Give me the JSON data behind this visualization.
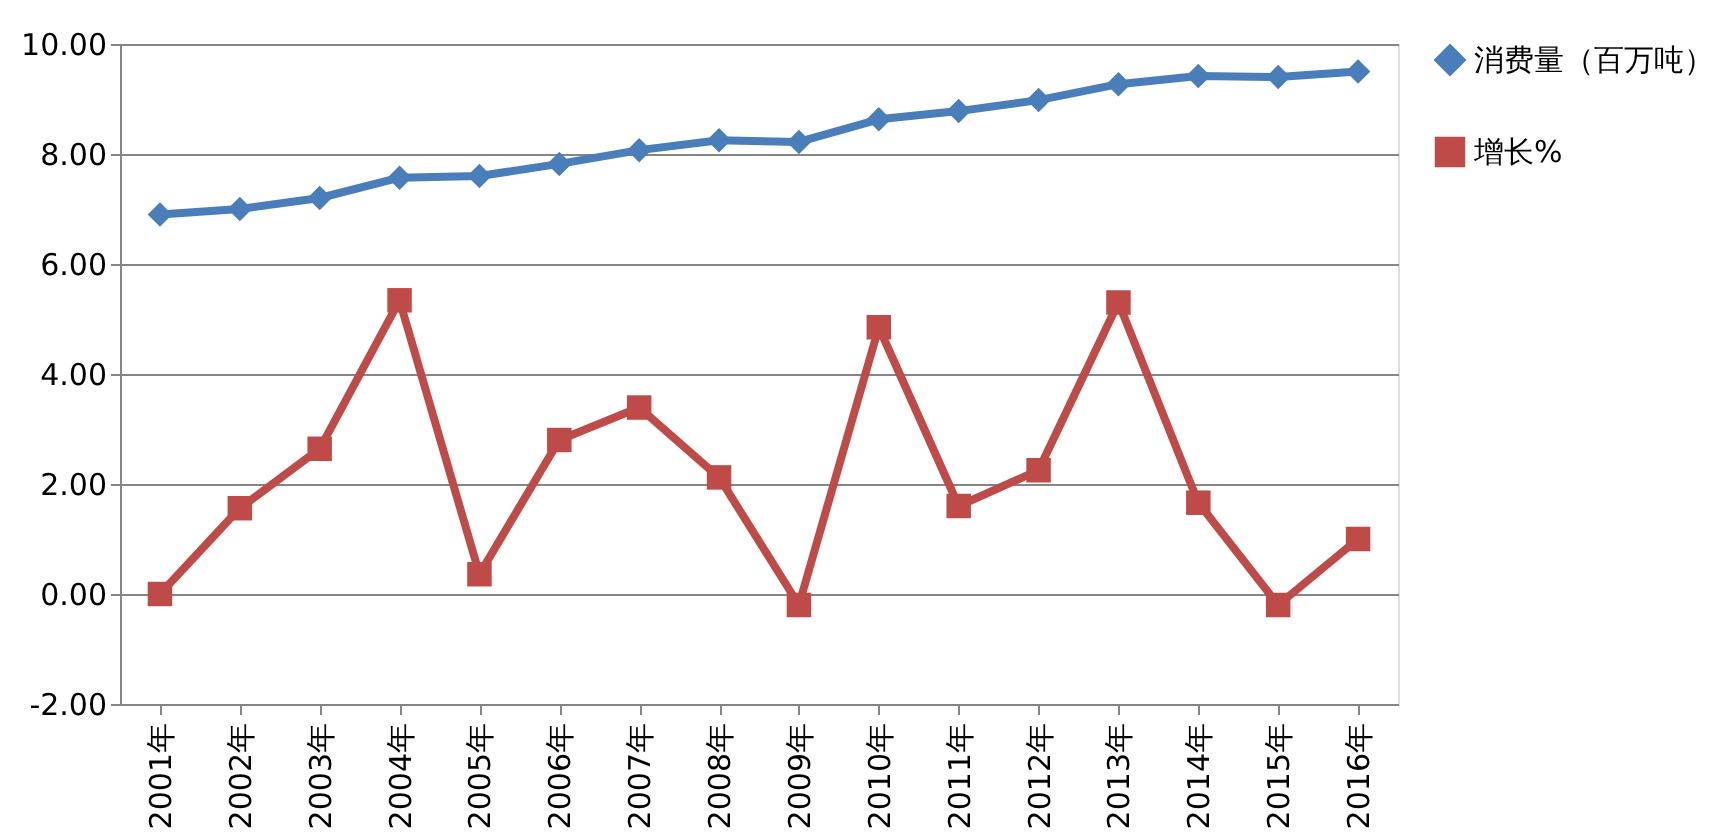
{
  "chart_data": {
    "type": "line",
    "categories": [
      "2001年",
      "2002年",
      "2003年",
      "2004年",
      "2005年",
      "2006年",
      "2007年",
      "2008年",
      "2009年",
      "2010年",
      "2011年",
      "2012年",
      "2013年",
      "2014年",
      "2015年",
      "2016年"
    ],
    "series": [
      {
        "name": "消费量（百万吨）",
        "color": "#4a7ebb",
        "marker": "diamond",
        "values": [
          6.9,
          7.0,
          7.2,
          7.57,
          7.6,
          7.82,
          8.07,
          8.25,
          8.22,
          8.63,
          8.78,
          8.98,
          9.27,
          9.42,
          9.4,
          9.5
        ]
      },
      {
        "name": "增长%",
        "color": "#be4b48",
        "marker": "square",
        "values": [
          0.0,
          1.56,
          2.64,
          5.34,
          0.36,
          2.8,
          3.39,
          2.12,
          -0.2,
          4.85,
          1.6,
          2.25,
          5.3,
          1.66,
          -0.2,
          1.0
        ]
      }
    ],
    "ylim": [
      -2,
      10
    ],
    "yticks": [
      {
        "value": -2,
        "label": "-2.00"
      },
      {
        "value": 0,
        "label": "0.00"
      },
      {
        "value": 2,
        "label": "2.00"
      },
      {
        "value": 4,
        "label": "4.00"
      },
      {
        "value": 6,
        "label": "6.00"
      },
      {
        "value": 8,
        "label": "8.00"
      },
      {
        "value": 10,
        "label": "10.00"
      }
    ],
    "grid": "y",
    "legend": "right"
  }
}
